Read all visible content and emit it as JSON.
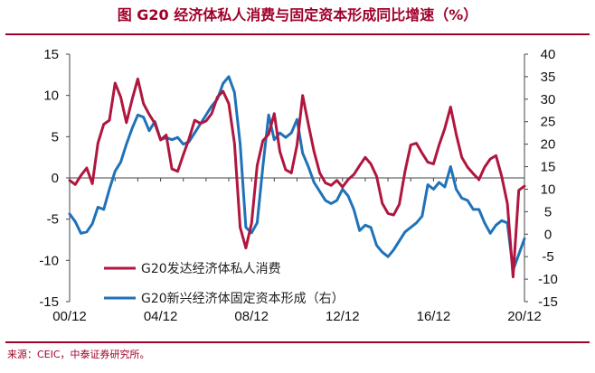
{
  "header": {
    "title": "图  G20 经济体私人消费与固定资本形成同比增速（%）"
  },
  "footer": {
    "source": "来源：CEIC，中泰证券研究所。"
  },
  "colors": {
    "consumption": "#b0163e",
    "investment": "#2072b8",
    "title": "#a0002a"
  },
  "chart_data": {
    "type": "line",
    "x_ticks": [
      "00/12",
      "04/12",
      "08/12",
      "12/12",
      "16/12",
      "20/12"
    ],
    "y_left": {
      "range": [
        -15,
        15
      ],
      "ticks": [
        "15",
        "10",
        "5",
        "0",
        "-5",
        "-10",
        "-15"
      ]
    },
    "y_right": {
      "range": [
        -15,
        40
      ],
      "ticks": [
        "40",
        "35",
        "30",
        "25",
        "20",
        "15",
        "10",
        "5",
        "0",
        "-5",
        "-10",
        "-15"
      ]
    },
    "legend": {
      "position": "bottom-left"
    },
    "series": [
      {
        "name": "G20发达经济体私人消费",
        "axis": "left",
        "x": [
          "2000-12",
          "2001-03",
          "2001-06",
          "2001-09",
          "2001-12",
          "2002-03",
          "2002-06",
          "2002-09",
          "2002-12",
          "2003-03",
          "2003-06",
          "2003-09",
          "2003-12",
          "2004-03",
          "2004-06",
          "2004-09",
          "2004-12",
          "2005-03",
          "2005-06",
          "2005-09",
          "2005-12",
          "2006-03",
          "2006-06",
          "2006-09",
          "2006-12",
          "2007-03",
          "2007-06",
          "2007-09",
          "2007-12",
          "2008-03",
          "2008-06",
          "2008-09",
          "2008-12",
          "2009-03",
          "2009-06",
          "2009-09",
          "2009-12",
          "2010-03",
          "2010-06",
          "2010-09",
          "2010-12",
          "2011-03",
          "2011-06",
          "2011-09",
          "2011-12",
          "2012-03",
          "2012-06",
          "2012-09",
          "2012-12",
          "2013-03",
          "2013-06",
          "2013-09",
          "2013-12",
          "2014-03",
          "2014-06",
          "2014-09",
          "2014-12",
          "2015-03",
          "2015-06",
          "2015-09",
          "2015-12",
          "2016-03",
          "2016-06",
          "2016-09",
          "2016-12",
          "2017-03",
          "2017-06",
          "2017-09",
          "2017-12",
          "2018-03",
          "2018-06",
          "2018-09",
          "2018-12",
          "2019-03",
          "2019-06",
          "2019-09",
          "2019-12",
          "2020-03",
          "2020-06",
          "2020-09",
          "2020-12"
        ],
        "values": [
          -0.3,
          -0.8,
          0.3,
          1.2,
          -0.7,
          4.2,
          6.5,
          7.0,
          11.5,
          9.8,
          6.7,
          9.5,
          12.0,
          9.0,
          7.7,
          6.6,
          4.6,
          5.2,
          1.1,
          0.8,
          2.8,
          4.7,
          7.0,
          6.6,
          6.9,
          7.8,
          9.8,
          10.5,
          9.0,
          4.2,
          -6.0,
          -8.5,
          -5.5,
          1.5,
          4.5,
          5.3,
          7.8,
          3.2,
          1.0,
          0.6,
          4.0,
          10.0,
          6.5,
          3.2,
          0.6,
          -0.6,
          -0.9,
          -0.3,
          -1.1,
          -0.2,
          0.4,
          1.5,
          2.5,
          1.7,
          0.2,
          -3.1,
          -4.3,
          -4.5,
          -3.2,
          0.8,
          4.0,
          4.2,
          3.0,
          1.9,
          1.7,
          4.0,
          6.0,
          8.6,
          5.3,
          2.5,
          1.3,
          0.5,
          -0.2,
          1.3,
          2.3,
          2.7,
          0.2,
          -3.1,
          -12.0,
          -1.5,
          -1.0
        ]
      },
      {
        "name": "G20新兴经济体固定资本形成（右）",
        "axis": "right",
        "x": [
          "2000-12",
          "2001-03",
          "2001-06",
          "2001-09",
          "2001-12",
          "2002-03",
          "2002-06",
          "2002-09",
          "2002-12",
          "2003-03",
          "2003-06",
          "2003-09",
          "2003-12",
          "2004-03",
          "2004-06",
          "2004-09",
          "2004-12",
          "2005-03",
          "2005-06",
          "2005-09",
          "2005-12",
          "2006-03",
          "2006-06",
          "2006-09",
          "2006-12",
          "2007-03",
          "2007-06",
          "2007-09",
          "2007-12",
          "2008-03",
          "2008-06",
          "2008-09",
          "2008-12",
          "2009-03",
          "2009-06",
          "2009-09",
          "2009-12",
          "2010-03",
          "2010-06",
          "2010-09",
          "2010-12",
          "2011-03",
          "2011-06",
          "2011-09",
          "2011-12",
          "2012-03",
          "2012-06",
          "2012-09",
          "2012-12",
          "2013-03",
          "2013-06",
          "2013-09",
          "2013-12",
          "2014-03",
          "2014-06",
          "2014-09",
          "2014-12",
          "2015-03",
          "2015-06",
          "2015-09",
          "2015-12",
          "2016-03",
          "2016-06",
          "2016-09",
          "2016-12",
          "2017-03",
          "2017-06",
          "2017-09",
          "2017-12",
          "2018-03",
          "2018-06",
          "2018-09",
          "2018-12",
          "2019-03",
          "2019-06",
          "2019-09",
          "2019-12",
          "2020-03",
          "2020-06",
          "2020-09",
          "2020-12"
        ],
        "values": [
          4.5,
          2.8,
          0.2,
          0.5,
          2.3,
          6.0,
          5.5,
          10.0,
          14.0,
          16.0,
          20.0,
          23.5,
          26.5,
          26.0,
          23.0,
          25.0,
          21.0,
          21.5,
          21.0,
          21.5,
          20.0,
          20.5,
          22.5,
          24.5,
          26.5,
          28.5,
          30.0,
          33.5,
          35.0,
          31.5,
          20.0,
          1.5,
          0.3,
          2.5,
          15.0,
          26.5,
          21.0,
          22.5,
          21.5,
          22.5,
          25.5,
          18.0,
          15.0,
          11.5,
          9.5,
          7.5,
          6.8,
          7.5,
          10.0,
          8.5,
          5.5,
          0.8,
          2.0,
          1.5,
          -2.5,
          -4.0,
          -5.0,
          -3.5,
          -1.5,
          0.5,
          1.5,
          2.5,
          4.0,
          11.0,
          10.0,
          11.5,
          10.5,
          15.0,
          10.0,
          8.0,
          7.5,
          5.5,
          5.5,
          2.5,
          0.2,
          2.0,
          3.0,
          2.5,
          -8.0,
          -4.5,
          -1.0
        ]
      }
    ]
  }
}
